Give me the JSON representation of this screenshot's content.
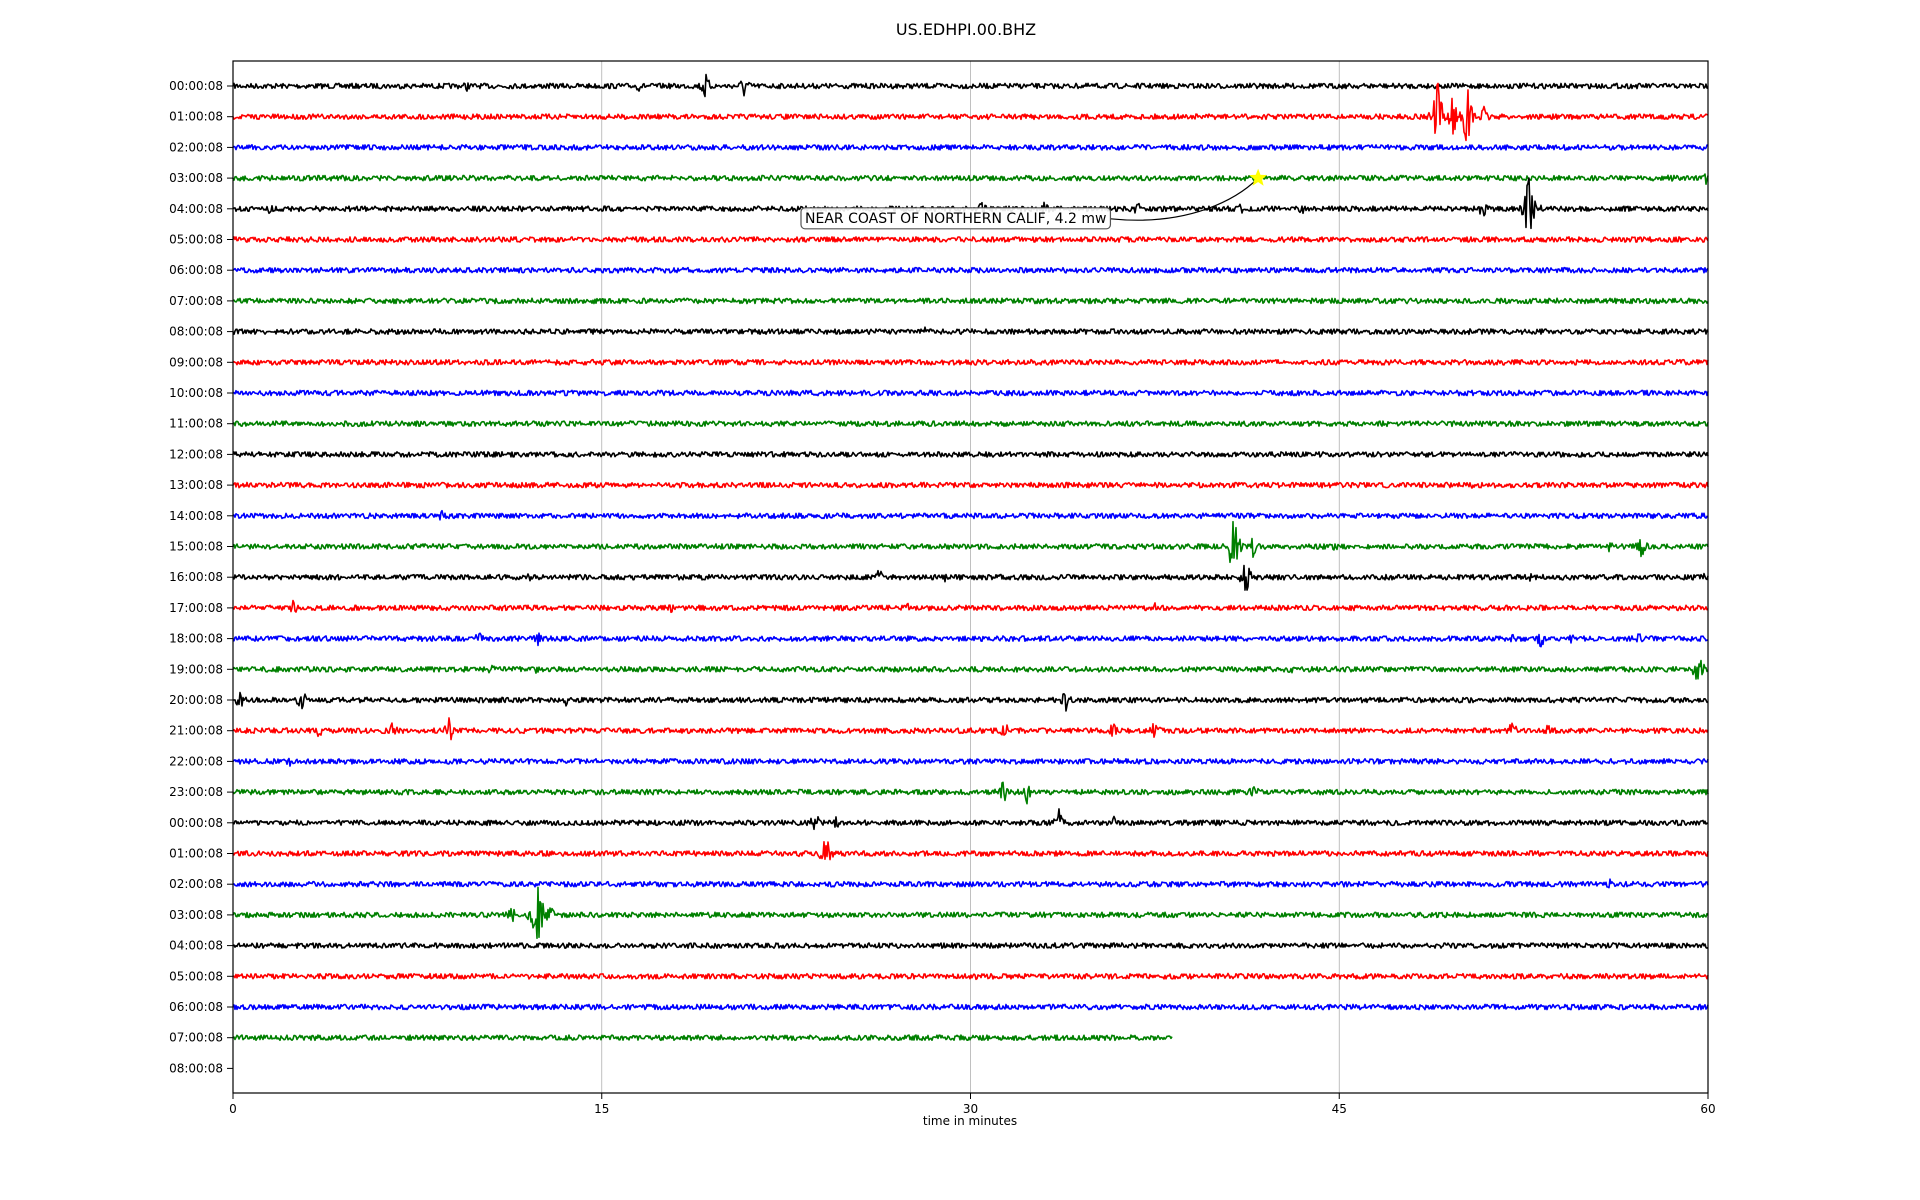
{
  "chart_data": {
    "type": "line",
    "title": "US.EDHPI.00.BHZ",
    "xlabel": "time in minutes",
    "ylabel": "",
    "xlim": [
      0,
      60
    ],
    "x_ticks": [
      0,
      15,
      30,
      45,
      60
    ],
    "x_tick_labels": [
      "0",
      "15",
      "30",
      "45",
      "60"
    ],
    "grid": "vertical at x ticks",
    "row_colors": [
      "#000000",
      "#ff0000",
      "#0000ff",
      "#008000"
    ],
    "rows": [
      {
        "label": "00:00:08",
        "end": 60,
        "events": [
          [
            9.5,
            6
          ],
          [
            16.5,
            6
          ],
          [
            19.2,
            16
          ],
          [
            20.8,
            14
          ]
        ]
      },
      {
        "label": "01:00:08",
        "end": 60,
        "events": [
          [
            49,
            40
          ],
          [
            49.6,
            26
          ],
          [
            50.2,
            34
          ],
          [
            50.9,
            12
          ]
        ]
      },
      {
        "label": "02:00:08",
        "end": 60,
        "events": []
      },
      {
        "label": "03:00:08",
        "end": 60,
        "events": [
          [
            58.5,
            6
          ],
          [
            59.9,
            8
          ]
        ]
      },
      {
        "label": "04:00:08",
        "end": 60,
        "events": [
          [
            1.5,
            6
          ],
          [
            30.5,
            10
          ],
          [
            33,
            10
          ],
          [
            36.8,
            8
          ],
          [
            41,
            6
          ],
          [
            43.5,
            8
          ],
          [
            50.8,
            12
          ],
          [
            52.7,
            36
          ],
          [
            53,
            12
          ]
        ]
      },
      {
        "label": "05:00:08",
        "end": 60,
        "events": []
      },
      {
        "label": "06:00:08",
        "end": 60,
        "events": []
      },
      {
        "label": "07:00:08",
        "end": 60,
        "events": [
          [
            21,
            4
          ]
        ]
      },
      {
        "label": "08:00:08",
        "end": 60,
        "events": [
          [
            28.2,
            6
          ],
          [
            50.3,
            4
          ]
        ]
      },
      {
        "label": "09:00:08",
        "end": 60,
        "events": []
      },
      {
        "label": "10:00:08",
        "end": 60,
        "events": []
      },
      {
        "label": "11:00:08",
        "end": 60,
        "events": []
      },
      {
        "label": "12:00:08",
        "end": 60,
        "events": []
      },
      {
        "label": "13:00:08",
        "end": 60,
        "events": [
          [
            50.4,
            6
          ]
        ]
      },
      {
        "label": "14:00:08",
        "end": 60,
        "events": [
          [
            8.5,
            8
          ]
        ]
      },
      {
        "label": "15:00:08",
        "end": 60,
        "events": [
          [
            40.7,
            40
          ],
          [
            41.5,
            12
          ],
          [
            43,
            8
          ],
          [
            44.8,
            6
          ],
          [
            56,
            6
          ],
          [
            57.3,
            14
          ]
        ]
      },
      {
        "label": "16:00:08",
        "end": 60,
        "events": [
          [
            12,
            6
          ],
          [
            26.3,
            10
          ],
          [
            29,
            6
          ],
          [
            41.2,
            20
          ],
          [
            52.8,
            6
          ],
          [
            59.8,
            6
          ]
        ]
      },
      {
        "label": "17:00:08",
        "end": 60,
        "events": [
          [
            2.4,
            12
          ],
          [
            17.8,
            6
          ],
          [
            24.5,
            6
          ],
          [
            27.5,
            6
          ],
          [
            37.5,
            6
          ]
        ]
      },
      {
        "label": "18:00:08",
        "end": 60,
        "events": [
          [
            10,
            8
          ],
          [
            12.4,
            8
          ],
          [
            52,
            6
          ],
          [
            53.2,
            10
          ],
          [
            54.5,
            8
          ],
          [
            57.2,
            6
          ]
        ]
      },
      {
        "label": "19:00:08",
        "end": 60,
        "events": [
          [
            10.5,
            8
          ],
          [
            12.3,
            6
          ],
          [
            43,
            6
          ],
          [
            44.9,
            6
          ],
          [
            59.6,
            20
          ]
        ]
      },
      {
        "label": "20:00:08",
        "end": 60,
        "events": [
          [
            0.3,
            12
          ],
          [
            2.8,
            14
          ],
          [
            13.5,
            8
          ],
          [
            33.9,
            14
          ]
        ]
      },
      {
        "label": "21:00:08",
        "end": 60,
        "events": [
          [
            3.5,
            8
          ],
          [
            6.5,
            10
          ],
          [
            8.8,
            14
          ],
          [
            31.4,
            10
          ],
          [
            35.8,
            10
          ],
          [
            37.5,
            12
          ],
          [
            52,
            14
          ],
          [
            53.5,
            8
          ]
        ]
      },
      {
        "label": "22:00:08",
        "end": 60,
        "events": [
          [
            2.3,
            6
          ],
          [
            25.6,
            4
          ]
        ]
      },
      {
        "label": "23:00:08",
        "end": 60,
        "events": [
          [
            31.3,
            20
          ],
          [
            32.3,
            12
          ],
          [
            41.5,
            12
          ]
        ]
      },
      {
        "label": "00:00:08",
        "end": 60,
        "events": [
          [
            23.7,
            14
          ],
          [
            24.5,
            8
          ],
          [
            33.6,
            14
          ],
          [
            35.8,
            8
          ]
        ]
      },
      {
        "label": "01:00:08",
        "end": 60,
        "events": [
          [
            23,
            8
          ],
          [
            24.1,
            22
          ],
          [
            27,
            4
          ]
        ]
      },
      {
        "label": "02:00:08",
        "end": 60,
        "events": [
          [
            56,
            6
          ]
        ]
      },
      {
        "label": "03:00:08",
        "end": 60,
        "events": [
          [
            11.3,
            12
          ],
          [
            12.4,
            50
          ],
          [
            12.9,
            10
          ]
        ]
      },
      {
        "label": "04:00:08",
        "end": 60,
        "events": [
          [
            23.4,
            4
          ]
        ]
      },
      {
        "label": "05:00:08",
        "end": 60,
        "events": [
          [
            30.2,
            10
          ],
          [
            40.5,
            4
          ]
        ]
      },
      {
        "label": "06:00:08",
        "end": 60,
        "events": [
          [
            12.4,
            4
          ]
        ]
      },
      {
        "label": "07:00:08",
        "end": 38.2,
        "events": []
      },
      {
        "label": "08:00:08",
        "end": 0,
        "events": []
      }
    ],
    "annotation": {
      "text": "NEAR COAST OF NORTHERN CALIF, 4.2 mw",
      "marker_row": 3,
      "marker_x": 41.7,
      "marker_color": "#ffff00"
    }
  }
}
